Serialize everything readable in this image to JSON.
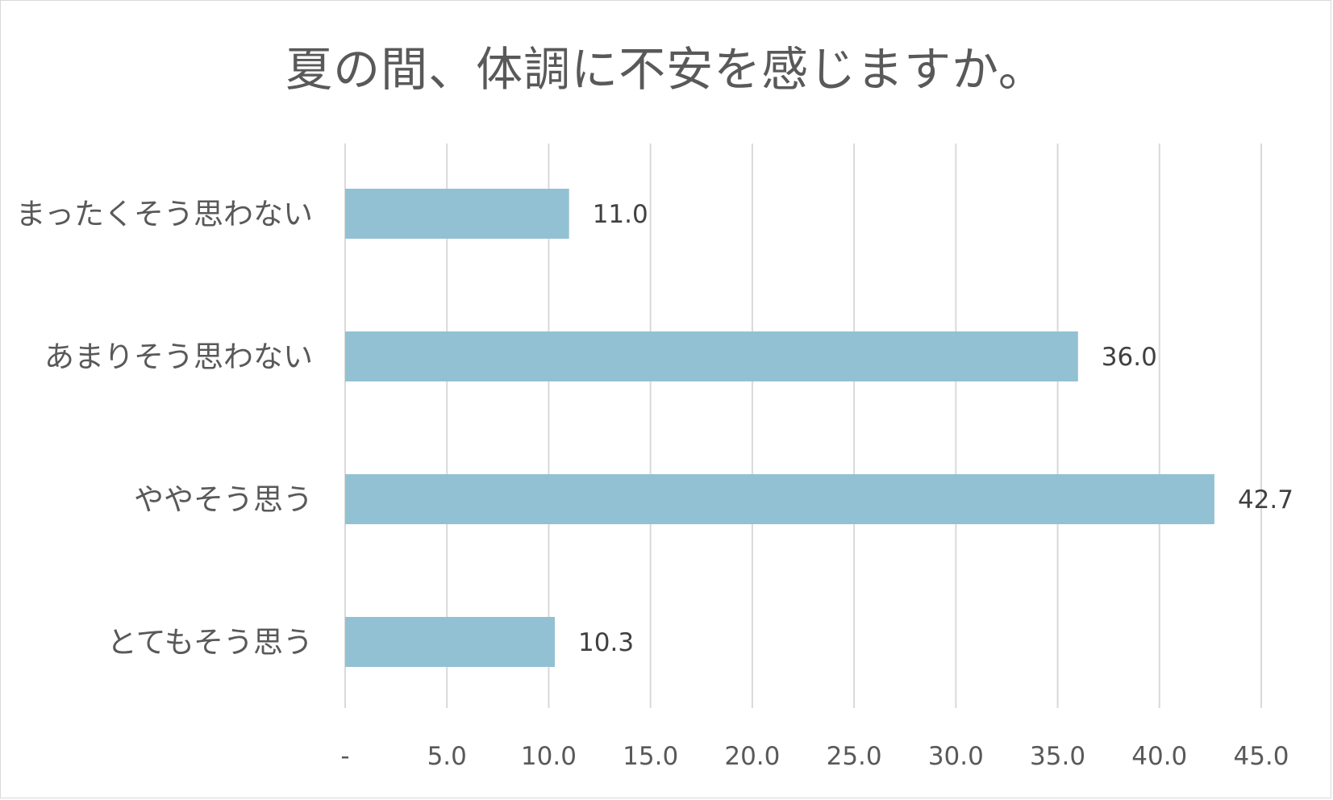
{
  "chart_data": {
    "type": "bar",
    "orientation": "horizontal",
    "title": "夏の間、体調に不安を感じますか。",
    "categories": [
      "まったくそう思わない",
      "あまりそう思わない",
      "ややそう思う",
      "とてもそう思う"
    ],
    "values": [
      11.0,
      36.0,
      42.7,
      10.3
    ],
    "data_labels": [
      "11.0",
      "36.0",
      "42.7",
      "10.3"
    ],
    "xlim": [
      0,
      45
    ],
    "x_ticks": [
      0,
      5,
      10,
      15,
      20,
      25,
      30,
      35,
      40,
      45
    ],
    "x_tick_labels": [
      "-",
      "5.0",
      "10.0",
      "15.0",
      "20.0",
      "25.0",
      "30.0",
      "35.0",
      "40.0",
      "45.0"
    ],
    "grid": "vertical",
    "legend": "none",
    "bar_color": "#92c1d3",
    "gridline_color": "#d9d9d9",
    "text_color": "#595959"
  }
}
